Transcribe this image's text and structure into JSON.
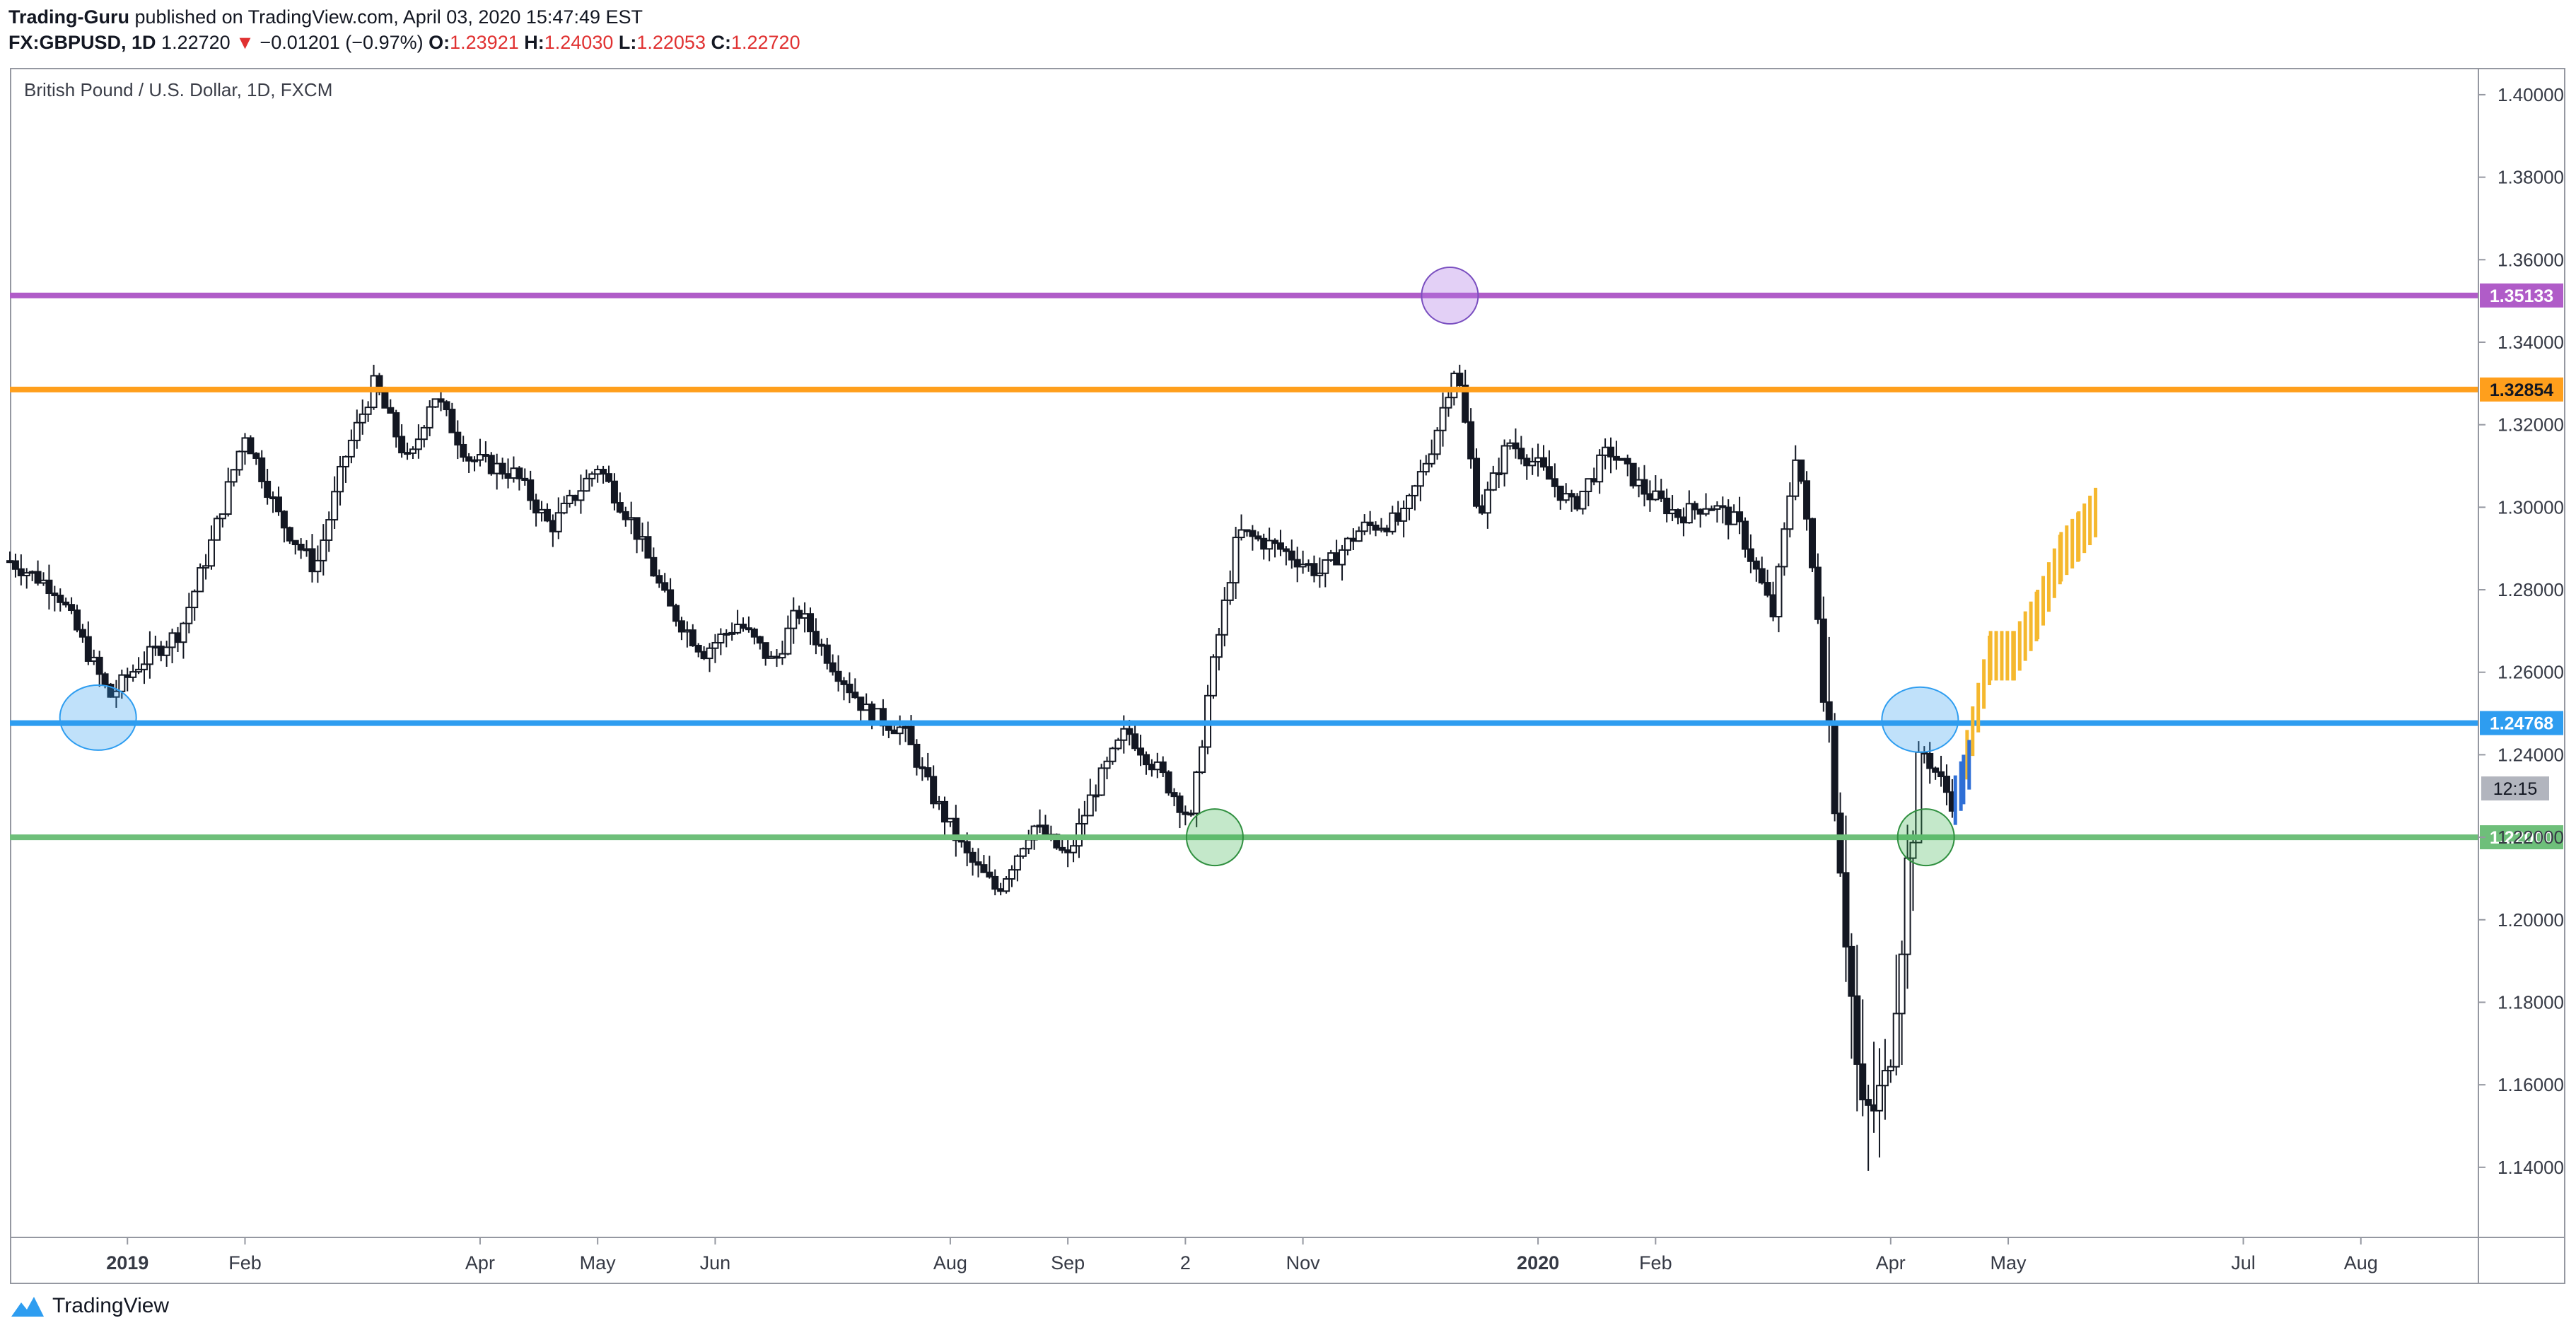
{
  "header": {
    "author": "Trading-Guru",
    "published_text": "published on TradingView.com, April 03, 2020 15:47:49 EST",
    "symbol": "FX:GBPUSD, 1D",
    "last_price": "1.22720",
    "change_arrow": "▼",
    "change": "−0.01201 (−0.97%)",
    "o_label": "O:",
    "o_value": "1.23921",
    "h_label": "H:",
    "h_value": "1.24030",
    "l_label": "L:",
    "l_value": "1.22053",
    "c_label": "C:",
    "c_value": "1.22720"
  },
  "chart_title": "British Pound / U.S. Dollar, 1D, FXCM",
  "watermark": "TradingView",
  "colors": {
    "purple": "#b05cc8",
    "orange": "#ff9f1c",
    "blue": "#2e9df0",
    "green": "#6ebf7a",
    "candle": "#131722",
    "projection_orange": "#f5b82e",
    "projection_blue": "#2f6fd6",
    "axis_text": "#363a45",
    "time_badge": "#b2b5be"
  },
  "chart_data": {
    "type": "candlestick",
    "title": "British Pound / U.S. Dollar, 1D, FXCM",
    "ylim": [
      1.123,
      1.4065
    ],
    "y_ticks": [
      "1.14000",
      "1.16000",
      "1.18000",
      "1.20000",
      "1.22000",
      "1.24000",
      "1.26000",
      "1.28000",
      "1.30000",
      "1.32000",
      "1.34000",
      "1.36000",
      "1.38000",
      "1.40000"
    ],
    "x_ticks": [
      {
        "label": "2019",
        "month_index": 1,
        "bold": true
      },
      {
        "label": "Feb",
        "month_index": 2
      },
      {
        "label": "Apr",
        "month_index": 4
      },
      {
        "label": "May",
        "month_index": 5
      },
      {
        "label": "Jun",
        "month_index": 6
      },
      {
        "label": "Aug",
        "month_index": 8
      },
      {
        "label": "Sep",
        "month_index": 9
      },
      {
        "label": "2",
        "month_index": 10
      },
      {
        "label": "Nov",
        "month_index": 11
      },
      {
        "label": "2020",
        "month_index": 13,
        "bold": true
      },
      {
        "label": "Feb",
        "month_index": 14
      },
      {
        "label": "Apr",
        "month_index": 16
      },
      {
        "label": "May",
        "month_index": 17
      },
      {
        "label": "Jul",
        "month_index": 19
      },
      {
        "label": "Aug",
        "month_index": 20
      }
    ],
    "horizontal_levels": [
      {
        "value": 1.35133,
        "label": "1.35133",
        "color": "#b05cc8"
      },
      {
        "value": 1.32854,
        "label": "1.32854",
        "color": "#ff9f1c"
      },
      {
        "value": 1.24768,
        "label": "1.24768",
        "color": "#2e9df0"
      },
      {
        "value": 1.22,
        "label": "1.22000",
        "color": "#6ebf7a"
      }
    ],
    "time_badge": {
      "label": "12:15",
      "value": 1.2272
    },
    "closes_path": [
      [
        0.0,
        1.287
      ],
      [
        0.4,
        1.28
      ],
      [
        0.85,
        1.254
      ],
      [
        1.1,
        1.262
      ],
      [
        1.45,
        1.27
      ],
      [
        1.7,
        1.29
      ],
      [
        2.0,
        1.318
      ],
      [
        2.3,
        1.297
      ],
      [
        2.6,
        1.285
      ],
      [
        2.85,
        1.312
      ],
      [
        3.1,
        1.33
      ],
      [
        3.4,
        1.31
      ],
      [
        3.6,
        1.328
      ],
      [
        3.9,
        1.312
      ],
      [
        4.3,
        1.308
      ],
      [
        4.6,
        1.295
      ],
      [
        5.0,
        1.31
      ],
      [
        5.3,
        1.296
      ],
      [
        5.6,
        1.276
      ],
      [
        5.9,
        1.265
      ],
      [
        6.2,
        1.272
      ],
      [
        6.5,
        1.262
      ],
      [
        6.7,
        1.275
      ],
      [
        7.0,
        1.262
      ],
      [
        7.3,
        1.25
      ],
      [
        7.6,
        1.246
      ],
      [
        7.85,
        1.23
      ],
      [
        8.15,
        1.215
      ],
      [
        8.4,
        1.207
      ],
      [
        8.7,
        1.223
      ],
      [
        9.0,
        1.215
      ],
      [
        9.2,
        1.23
      ],
      [
        9.5,
        1.246
      ],
      [
        9.8,
        1.235
      ],
      [
        10.05,
        1.224
      ],
      [
        10.2,
        1.256
      ],
      [
        10.45,
        1.294
      ],
      [
        10.8,
        1.29
      ],
      [
        11.15,
        1.284
      ],
      [
        11.5,
        1.295
      ],
      [
        11.85,
        1.297
      ],
      [
        12.1,
        1.315
      ],
      [
        12.3,
        1.335
      ],
      [
        12.5,
        1.298
      ],
      [
        12.75,
        1.316
      ],
      [
        13.0,
        1.31
      ],
      [
        13.3,
        1.3
      ],
      [
        13.6,
        1.314
      ],
      [
        13.9,
        1.304
      ],
      [
        14.2,
        1.298
      ],
      [
        14.45,
        1.301
      ],
      [
        14.7,
        1.296
      ],
      [
        15.0,
        1.274
      ],
      [
        15.2,
        1.315
      ],
      [
        15.4,
        1.27
      ],
      [
        15.55,
        1.225
      ],
      [
        15.75,
        1.15
      ],
      [
        15.95,
        1.158
      ],
      [
        16.1,
        1.2
      ],
      [
        16.25,
        1.242
      ],
      [
        16.4,
        1.235
      ],
      [
        16.55,
        1.2272
      ]
    ],
    "projection_orange": [
      [
        16.65,
        1.238
      ],
      [
        16.85,
        1.262
      ],
      [
        17.05,
        1.262
      ],
      [
        17.25,
        1.272
      ],
      [
        17.45,
        1.286
      ],
      [
        17.6,
        1.291
      ],
      [
        17.75,
        1.297
      ]
    ],
    "projection_blue": [
      [
        16.55,
        1.227
      ],
      [
        16.62,
        1.232
      ],
      [
        16.7,
        1.238
      ]
    ],
    "markers": [
      {
        "month_index": 0.75,
        "value": 1.249,
        "color": "blue"
      },
      {
        "month_index": 12.25,
        "value": 1.3513,
        "color": "purple"
      },
      {
        "month_index": 10.25,
        "value": 1.22,
        "color": "green"
      },
      {
        "month_index": 16.25,
        "value": 1.2485,
        "color": "blue"
      },
      {
        "month_index": 16.3,
        "value": 1.22,
        "color": "green"
      }
    ]
  }
}
